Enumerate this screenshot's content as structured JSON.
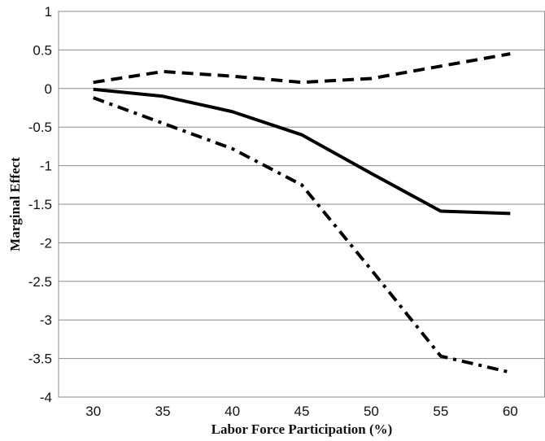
{
  "chart_data": {
    "type": "line",
    "xlabel": "Labor Force Participation (%)",
    "ylabel": "Marginal Effect",
    "x": [
      30,
      35,
      40,
      45,
      50,
      55,
      60
    ],
    "xlim": [
      27.5,
      62.5
    ],
    "ylim": [
      -4,
      1
    ],
    "yticks": [
      "1",
      "0.5",
      "0",
      "-0.5",
      "-1",
      "-1.5",
      "-2",
      "-2.5",
      "-3",
      "-3.5",
      "-4"
    ],
    "xticks": [
      "30",
      "35",
      "40",
      "45",
      "50",
      "55",
      "60"
    ],
    "grid": "horizontal",
    "legend": "none",
    "series": [
      {
        "style": "dashed",
        "color": "#000000",
        "values": [
          0.08,
          0.22,
          0.16,
          0.08,
          0.13,
          0.29,
          0.45
        ]
      },
      {
        "style": "solid",
        "color": "#000000",
        "values": [
          -0.01,
          -0.1,
          -0.3,
          -0.6,
          -1.1,
          -1.59,
          -1.62
        ]
      },
      {
        "style": "dash-dot",
        "color": "#000000",
        "values": [
          -0.12,
          -0.45,
          -0.78,
          -1.25,
          -2.35,
          -3.47,
          -3.68
        ]
      }
    ]
  }
}
